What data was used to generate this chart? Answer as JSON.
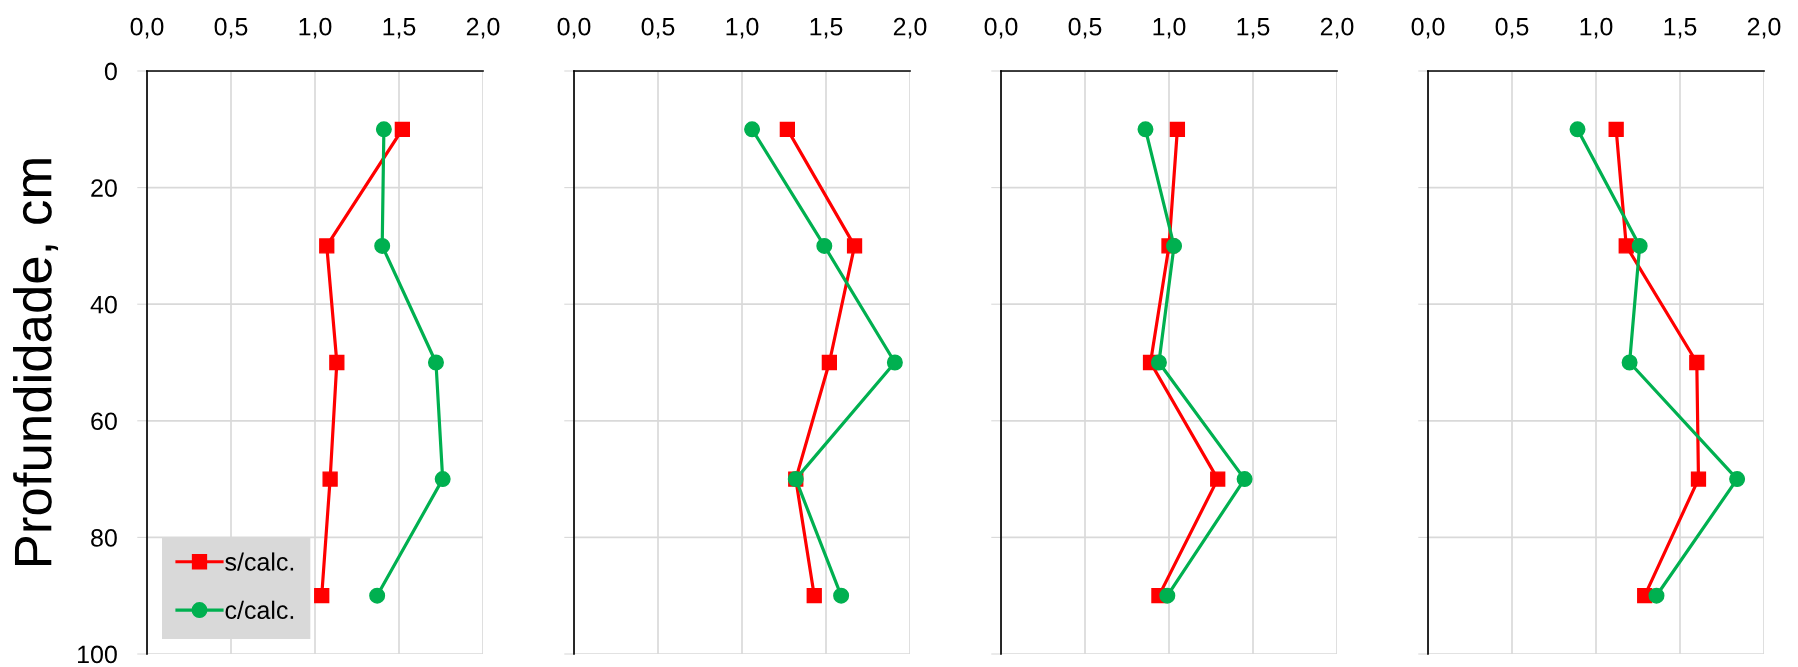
{
  "chart_data": [
    {
      "type": "line",
      "ylabel": "Profundidade, cm",
      "xlim": [
        0,
        2
      ],
      "ylim": [
        100,
        0
      ],
      "xticks": [
        {
          "value": 0,
          "label": "0,0"
        },
        {
          "value": 0.5,
          "label": "0,5"
        },
        {
          "value": 1,
          "label": "1,0"
        },
        {
          "value": 1.5,
          "label": "1,5"
        },
        {
          "value": 2,
          "label": "2,0"
        }
      ],
      "yticks": [
        0,
        20,
        40,
        60,
        80,
        100
      ],
      "grid": true,
      "legend": "bottom left",
      "line_style": "solid",
      "series": [
        {
          "name": "s/calc.",
          "color": "#ff0000",
          "marker": "square",
          "x": [
            1.52,
            1.07,
            1.13,
            1.09,
            1.04
          ],
          "values": [
            10,
            30,
            50,
            70,
            90
          ]
        },
        {
          "name": "c/calc.",
          "color": "#00b050",
          "marker": "circle",
          "x": [
            1.41,
            1.4,
            1.72,
            1.76,
            1.37
          ],
          "values": [
            10,
            30,
            50,
            70,
            90
          ]
        }
      ]
    },
    {
      "type": "line",
      "xlim": [
        0,
        2
      ],
      "ylim": [
        100,
        0
      ],
      "xticks": [
        {
          "value": 0,
          "label": "0,0"
        },
        {
          "value": 0.5,
          "label": "0,5"
        },
        {
          "value": 1,
          "label": "1,0"
        },
        {
          "value": 1.5,
          "label": "1,5"
        },
        {
          "value": 2,
          "label": "2,0"
        }
      ],
      "yticks": [
        0,
        20,
        40,
        60,
        80,
        100
      ],
      "grid": true,
      "tick_labels": "x",
      "line_style": "solid",
      "series": [
        {
          "color": "#ff0000",
          "marker": "square",
          "x": [
            1.27,
            1.67,
            1.52,
            1.32,
            1.43
          ],
          "values": [
            10,
            30,
            50,
            70,
            90
          ]
        },
        {
          "color": "#00b050",
          "marker": "circle",
          "x": [
            1.06,
            1.49,
            1.91,
            1.32,
            1.59
          ],
          "values": [
            10,
            30,
            50,
            70,
            90
          ]
        }
      ]
    },
    {
      "type": "line",
      "xlim": [
        0,
        2
      ],
      "ylim": [
        100,
        0
      ],
      "xticks": [
        {
          "value": 0,
          "label": "0,0"
        },
        {
          "value": 0.5,
          "label": "0,5"
        },
        {
          "value": 1,
          "label": "1,0"
        },
        {
          "value": 1.5,
          "label": "1,5"
        },
        {
          "value": 2,
          "label": "2,0"
        }
      ],
      "yticks": [
        0,
        20,
        40,
        60,
        80,
        100
      ],
      "grid": true,
      "tick_labels": "x",
      "line_style": "solid",
      "series": [
        {
          "color": "#ff0000",
          "marker": "square",
          "x": [
            1.05,
            1.0,
            0.89,
            1.29,
            0.94
          ],
          "values": [
            10,
            30,
            50,
            70,
            90
          ]
        },
        {
          "color": "#00b050",
          "marker": "circle",
          "x": [
            0.86,
            1.03,
            0.94,
            1.45,
            0.99
          ],
          "values": [
            10,
            30,
            50,
            70,
            90
          ]
        }
      ]
    },
    {
      "type": "line",
      "xlim": [
        0,
        2
      ],
      "ylim": [
        100,
        0
      ],
      "xticks": [
        {
          "value": 0,
          "label": "0,0"
        },
        {
          "value": 0.5,
          "label": "0,5"
        },
        {
          "value": 1,
          "label": "1,0"
        },
        {
          "value": 1.5,
          "label": "1,5"
        },
        {
          "value": 2,
          "label": "2,0"
        }
      ],
      "yticks": [
        0,
        20,
        40,
        60,
        80,
        100
      ],
      "grid": true,
      "tick_labels": "x",
      "line_style": "solid",
      "series": [
        {
          "color": "#ff0000",
          "marker": "square",
          "x": [
            1.12,
            1.18,
            1.6,
            1.61,
            1.29
          ],
          "values": [
            10,
            30,
            50,
            70,
            90
          ]
        },
        {
          "color": "#00b050",
          "marker": "circle",
          "x": [
            0.89,
            1.26,
            1.2,
            1.84,
            1.36
          ],
          "values": [
            10,
            30,
            50,
            70,
            90
          ]
        }
      ]
    }
  ]
}
